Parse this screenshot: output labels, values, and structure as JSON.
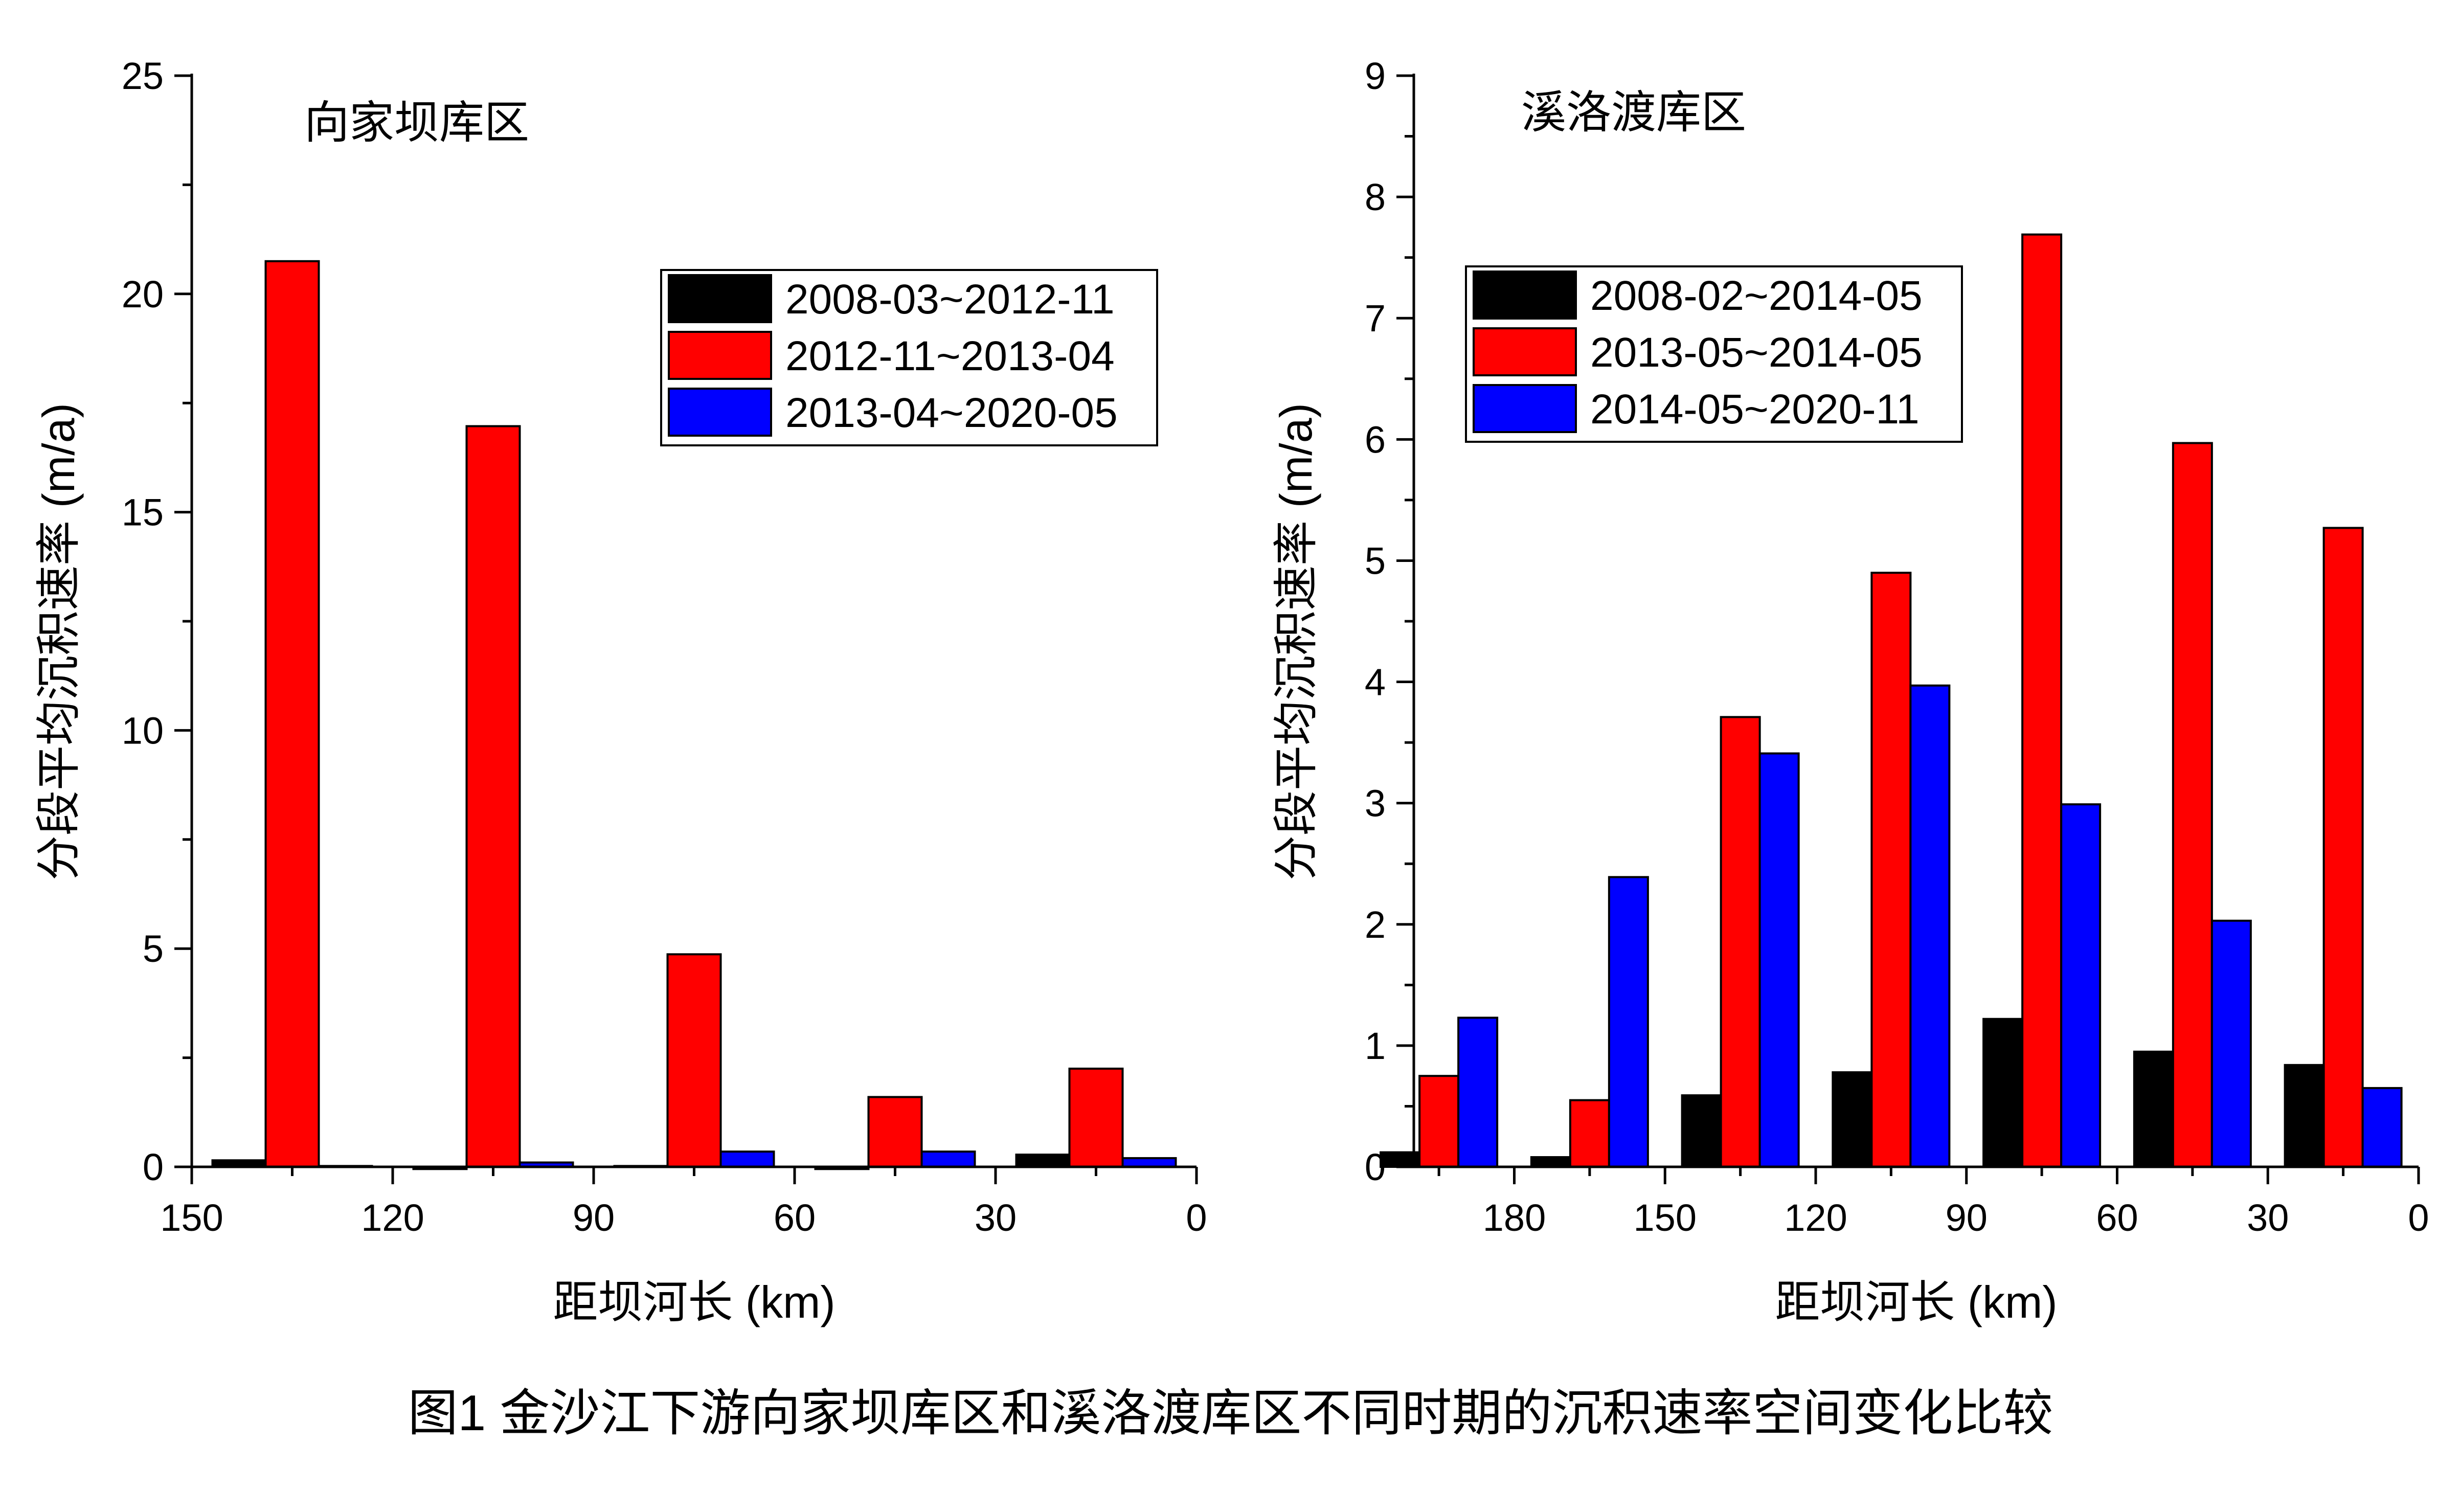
{
  "caption": "图1 金沙江下游向家坝库区和溪洛渡库区不同时期的沉积速率空间变化比较",
  "chart_data": [
    {
      "type": "bar",
      "title": "向家坝库区",
      "xlabel": "距坝河长 (km)",
      "ylabel": "分段平均沉积速率 (m/a)",
      "xlim": [
        150,
        0
      ],
      "xticks": [
        150,
        120,
        90,
        60,
        30,
        0
      ],
      "ylim": [
        0,
        25
      ],
      "yticks": [
        0,
        5,
        10,
        15,
        20,
        25
      ],
      "categories": [
        "141.5~128",
        "111~96",
        "81~66",
        "51~36",
        "21~6"
      ],
      "category_centers": [
        135,
        105,
        75,
        45,
        15
      ],
      "legend_position": "top-right",
      "series": [
        {
          "name": "2008-03~2012-11",
          "color": "#000000",
          "values": [
            0.15,
            -0.05,
            0.02,
            -0.05,
            0.28
          ]
        },
        {
          "name": "2012-11~2013-04",
          "color": "#ff0000",
          "values": [
            20.75,
            16.97,
            4.87,
            1.6,
            2.25
          ]
        },
        {
          "name": "2013-04~2020-05",
          "color": "#0000ff",
          "values": [
            0.02,
            0.1,
            0.35,
            0.35,
            0.2
          ]
        }
      ]
    },
    {
      "type": "bar",
      "title": "溪洛渡库区",
      "xlabel": "距坝河长 (km)",
      "ylabel": "分段平均沉积速率 (m/a)",
      "xlim": [
        200,
        0
      ],
      "xticks": [
        180,
        150,
        120,
        90,
        60,
        30,
        0
      ],
      "ylim": [
        0,
        9
      ],
      "yticks": [
        0,
        1,
        2,
        3,
        4,
        5,
        6,
        7,
        8,
        9
      ],
      "categories": [
        "195",
        "165",
        "135",
        "105",
        "75",
        "45",
        "15"
      ],
      "category_centers": [
        195,
        165,
        135,
        105,
        75,
        45,
        15
      ],
      "legend_position": "top-left",
      "series": [
        {
          "name": "2008-02~2014-05",
          "color": "#000000",
          "values": [
            0.12,
            0.08,
            0.59,
            0.78,
            1.22,
            0.95,
            0.84
          ]
        },
        {
          "name": "2013-05~2014-05",
          "color": "#ff0000",
          "values": [
            0.75,
            0.55,
            3.71,
            4.9,
            7.69,
            5.97,
            5.27
          ]
        },
        {
          "name": "2014-05~2020-11",
          "color": "#0000ff",
          "values": [
            1.23,
            2.39,
            3.41,
            3.97,
            2.99,
            2.03,
            0.65
          ]
        }
      ]
    }
  ]
}
